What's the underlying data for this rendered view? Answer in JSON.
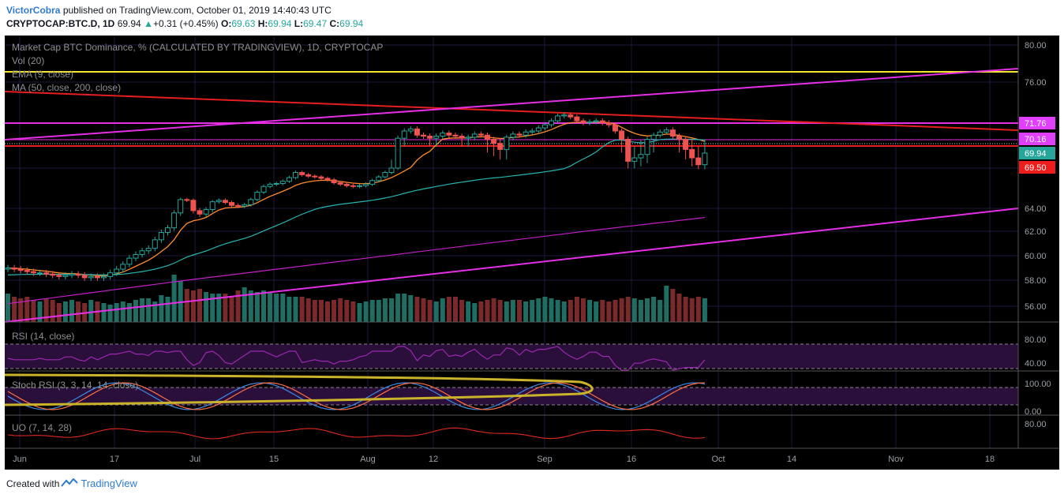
{
  "header": {
    "author": "VictorCobra",
    "published_text": "published on TradingView.com, October 01, 2019 14:40:43 UTC",
    "symbol": "CRYPTOCAP:BTC.D, 1D",
    "last": "69.94",
    "change": "+0.31 (+0.45%)",
    "o_label": "O:",
    "o": "69.63",
    "h_label": "H:",
    "h": "69.94",
    "l_label": "L:",
    "l": "69.47",
    "c_label": "C:",
    "c": "69.94"
  },
  "legend": {
    "title": "Market Cap BTC Dominance, % (CALCULATED BY TRADINGVIEW), 1D, CRYPTOCAP",
    "vol": "Vol (20)",
    "ema": "EMA (9, close)",
    "ma": "MA (50, close, 200, close)",
    "rsi": "RSI (14, close)",
    "stoch": "Stoch RSI (3, 3, 14, 14, close)",
    "uo": "UO (7, 14, 28)"
  },
  "price_axis": {
    "ticks": [
      "80.00",
      "76.00",
      "64.00",
      "62.00",
      "60.00",
      "58.00",
      "56.00"
    ],
    "badges": [
      {
        "text": "71.76",
        "color": "#e040fb"
      },
      {
        "text": "70.16",
        "color": "#e040fb"
      },
      {
        "text": "69.94",
        "color": "#26a69a"
      },
      {
        "text": "69.50",
        "color": "#ef1c1c"
      }
    ]
  },
  "rsi_axis": {
    "ticks": [
      "80.00",
      "40.00"
    ]
  },
  "stoch_axis": {
    "ticks": [
      "100.00",
      "0.00"
    ]
  },
  "uo_axis": {
    "ticks": [
      "80.00"
    ]
  },
  "time_axis": {
    "labels": [
      "Jun",
      "17",
      "Jul",
      "15",
      "Aug",
      "12",
      "Sep",
      "16",
      "Oct",
      "14",
      "Nov",
      "18"
    ]
  },
  "footer": {
    "created_with": "Created with",
    "brand": "TradingView"
  },
  "colors": {
    "background": "#000000",
    "up": "#26a69a",
    "down": "#ef5350",
    "vol_up": "#1e6e63",
    "vol_down": "#7a2a2a",
    "ema": "#ff8c2a",
    "ma50": "#26b5b0",
    "ma200": "#c21fc7",
    "trend_magenta": "#e62ee6",
    "trend_red": "#e61e1e",
    "trend_yellow": "#f5e62e",
    "rsi": "#9c27b0",
    "stoch_k": "#3d8ae8",
    "stoch_d": "#ff7043",
    "uo": "#e0281e",
    "annotation_ellipse": "#c9b32a"
  },
  "chart_data": {
    "type": "candlestick",
    "title": "Market Cap BTC Dominance, % (CALCULATED BY TRADINGVIEW), 1D, CRYPTOCAP",
    "x_range": [
      "2019-05-28",
      "2019-10-01"
    ],
    "price_range": [
      55,
      80
    ],
    "close_series": [
      59.0,
      58.9,
      58.8,
      58.7,
      58.6,
      58.6,
      58.5,
      58.4,
      58.3,
      58.4,
      58.5,
      58.4,
      58.2,
      58.3,
      58.2,
      58.3,
      58.6,
      58.9,
      59.3,
      59.8,
      60.1,
      60.4,
      60.6,
      61.3,
      61.9,
      62.3,
      63.6,
      65.2,
      65.1,
      63.8,
      63.5,
      63.9,
      64.9,
      65.1,
      64.8,
      64.4,
      64.3,
      64.5,
      65.2,
      66.2,
      67.0,
      67.3,
      67.4,
      67.7,
      68.2,
      68.9,
      68.6,
      68.4,
      68.3,
      68.1,
      67.9,
      67.5,
      67.3,
      67.1,
      67.0,
      67.1,
      67.3,
      67.8,
      68.3,
      68.9,
      69.5,
      70.3,
      71.0,
      71.2,
      70.6,
      70.5,
      70.3,
      70.5,
      70.8,
      70.6,
      70.5,
      70.3,
      70.4,
      70.7,
      70.6,
      70.2,
      70.1,
      70.0,
      70.4,
      70.7,
      70.6,
      70.9,
      71.0,
      71.3,
      71.6,
      72.0,
      72.5,
      72.6,
      72.4,
      72.0,
      71.8,
      71.9,
      72.0,
      71.8,
      71.6,
      71.0,
      70.2,
      69.7,
      69.8,
      69.9,
      70.2,
      70.6,
      70.9,
      71.1,
      70.5,
      70.2,
      70.0,
      69.8,
      69.6,
      69.94
    ],
    "ma50_series_end": 70.97,
    "ma200_series_end": 63.2,
    "volume_relative": [
      0.9,
      0.8,
      0.75,
      0.8,
      0.7,
      0.65,
      0.75,
      0.7,
      0.6,
      0.65,
      0.7,
      0.65,
      0.6,
      0.7,
      0.65,
      0.6,
      0.55,
      0.6,
      0.65,
      0.6,
      0.7,
      0.75,
      0.75,
      0.65,
      0.85,
      0.8,
      1.5,
      1.3,
      1.05,
      1.0,
      1.05,
      0.95,
      0.9,
      0.9,
      0.9,
      0.8,
      1.0,
      1.1,
      1.0,
      0.95,
      1.0,
      0.95,
      0.9,
      0.9,
      0.8,
      0.8,
      0.8,
      0.75,
      0.7,
      0.7,
      0.65,
      0.7,
      0.75,
      0.7,
      0.65,
      0.6,
      0.65,
      0.7,
      0.7,
      0.75,
      0.75,
      0.9,
      0.9,
      0.85,
      0.8,
      0.75,
      0.7,
      0.65,
      0.75,
      0.8,
      0.8,
      0.7,
      0.65,
      0.6,
      0.65,
      0.7,
      0.75,
      0.7,
      0.65,
      0.7,
      0.7,
      0.65,
      0.7,
      0.75,
      0.8,
      0.75,
      0.7,
      0.65,
      0.7,
      0.8,
      0.75,
      0.7,
      0.65,
      0.7,
      0.65,
      0.7,
      0.75,
      0.8,
      0.75,
      0.7,
      0.75,
      0.8,
      0.7,
      1.15,
      1.05,
      0.9,
      0.8,
      0.75,
      0.8,
      0.75
    ]
  }
}
